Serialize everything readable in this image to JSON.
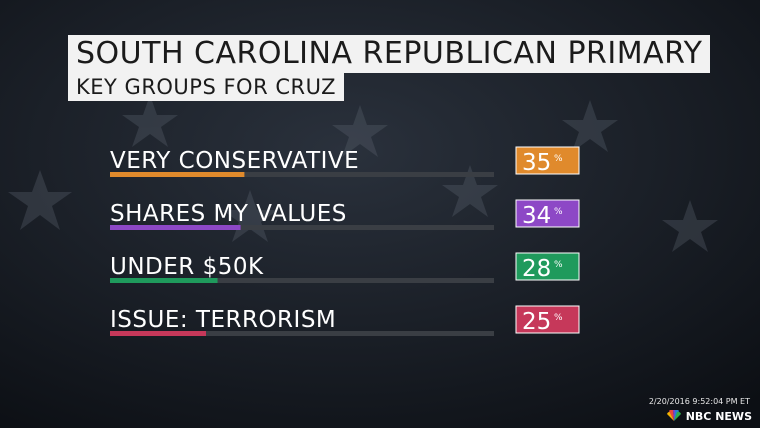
{
  "header": {
    "title": "SOUTH CAROLINA REPUBLICAN PRIMARY",
    "subtitle": "KEY GROUPS FOR CRUZ"
  },
  "chart_data": {
    "type": "bar",
    "title": "SOUTH CAROLINA REPUBLICAN PRIMARY",
    "subtitle": "KEY GROUPS FOR CRUZ",
    "categories": [
      "VERY CONSERVATIVE",
      "SHARES MY VALUES",
      "UNDER $50K",
      "ISSUE: TERRORISM"
    ],
    "values": [
      35,
      34,
      28,
      25
    ],
    "value_labels": [
      "35",
      "34",
      "28",
      "25"
    ],
    "unit": "%",
    "colors": [
      "#e08a2c",
      "#8d48c6",
      "#1f9a5c",
      "#c6385a"
    ],
    "ylim": [
      0,
      100
    ],
    "grid": false
  },
  "footer": {
    "timestamp": "2/20/2016 9:52:04 PM ET",
    "network": "NBC NEWS"
  },
  "colors": {
    "background": "#12161d",
    "track": "#3a3e44",
    "label_text": "#ffffff"
  }
}
